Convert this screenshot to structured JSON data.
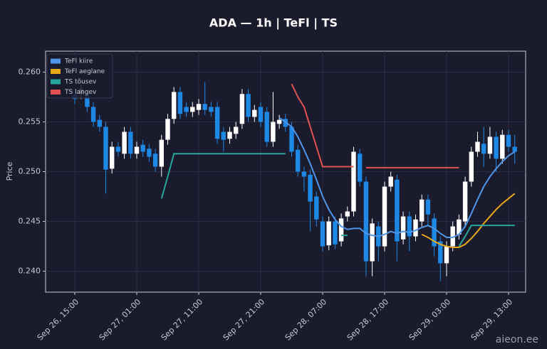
{
  "chart_data": {
    "type": "candlestick",
    "title": "ADA — 1h  |  TeFl  |  TS",
    "y_label": "Price",
    "watermark": "aieon.ee",
    "up_color": "#ffffff",
    "down_color": "#1e88e5",
    "grid": true,
    "legend": "upper left",
    "categories": [
      "Sep 26, 15:00",
      null,
      null,
      null,
      null,
      null,
      null,
      null,
      null,
      null,
      "Sep 27, 01:00",
      null,
      null,
      null,
      null,
      null,
      null,
      null,
      null,
      null,
      "Sep 27, 11:00",
      null,
      null,
      null,
      null,
      null,
      null,
      null,
      null,
      null,
      "Sep 27, 21:00",
      null,
      null,
      null,
      null,
      null,
      null,
      null,
      null,
      null,
      "Sep 28, 07:00",
      null,
      null,
      null,
      null,
      null,
      null,
      null,
      null,
      null,
      "Sep 28, 17:00",
      null,
      null,
      null,
      null,
      null,
      null,
      null,
      null,
      null,
      "Sep 29, 03:00",
      null,
      null,
      null,
      null,
      null,
      null,
      null,
      null,
      null,
      "Sep 29, 13:00",
      null
    ],
    "open": [
      0.2577,
      0.2578,
      0.2578,
      0.2565,
      0.2552,
      0.2545,
      0.2503,
      0.2525,
      0.2518,
      0.254,
      0.2518,
      0.2527,
      0.2523,
      0.2518,
      0.2505,
      0.2532,
      0.2553,
      0.258,
      0.2565,
      0.256,
      0.2562,
      0.2568,
      0.2565,
      0.2565,
      0.254,
      0.2533,
      0.2538,
      0.2548,
      0.2578,
      0.2555,
      0.2565,
      0.256,
      0.253,
      0.2548,
      0.2553,
      0.2545,
      0.2522,
      0.25,
      0.2497,
      0.2475,
      0.245,
      0.2426,
      0.245,
      0.243,
      0.2455,
      0.246,
      0.2518,
      0.249,
      0.241,
      0.2445,
      0.2425,
      0.2485,
      0.2492,
      0.2432,
      0.2455,
      0.2435,
      0.245,
      0.2472,
      0.2453,
      0.243,
      0.2408,
      0.2425,
      0.2437,
      0.245,
      0.249,
      0.252,
      0.2528,
      0.2518,
      0.2535,
      0.2513,
      0.2537,
      0.2525
    ],
    "high": [
      0.2582,
      0.2588,
      0.2583,
      0.257,
      0.2557,
      0.255,
      0.253,
      0.253,
      0.2545,
      0.2545,
      0.253,
      0.2532,
      0.2528,
      0.2523,
      0.2537,
      0.2558,
      0.2585,
      0.2585,
      0.257,
      0.257,
      0.2573,
      0.259,
      0.257,
      0.257,
      0.2545,
      0.2545,
      0.255,
      0.2583,
      0.2583,
      0.2567,
      0.257,
      0.2565,
      0.258,
      0.2557,
      0.2558,
      0.255,
      0.2527,
      0.2505,
      0.2502,
      0.248,
      0.2455,
      0.2455,
      0.2455,
      0.2458,
      0.2465,
      0.2525,
      0.2523,
      0.2495,
      0.2453,
      0.245,
      0.249,
      0.25,
      0.2497,
      0.246,
      0.246,
      0.2457,
      0.2477,
      0.2477,
      0.2458,
      0.2435,
      0.243,
      0.245,
      0.2457,
      0.2495,
      0.2525,
      0.254,
      0.2545,
      0.2545,
      0.254,
      0.2542,
      0.2542,
      0.2537
    ],
    "low": [
      0.2568,
      0.2573,
      0.256,
      0.2545,
      0.254,
      0.2478,
      0.2498,
      0.2515,
      0.2513,
      0.2513,
      0.2513,
      0.2515,
      0.251,
      0.25,
      0.2495,
      0.2527,
      0.2548,
      0.2553,
      0.2555,
      0.2555,
      0.2557,
      0.2557,
      0.2555,
      0.2528,
      0.252,
      0.2528,
      0.2533,
      0.2543,
      0.255,
      0.255,
      0.2545,
      0.2525,
      0.2525,
      0.2543,
      0.254,
      0.2515,
      0.2495,
      0.248,
      0.244,
      0.2445,
      0.242,
      0.2421,
      0.2422,
      0.2425,
      0.245,
      0.2455,
      0.2485,
      0.2395,
      0.2395,
      0.241,
      0.242,
      0.248,
      0.241,
      0.2427,
      0.242,
      0.243,
      0.2445,
      0.2445,
      0.2415,
      0.239,
      0.2395,
      0.242,
      0.2432,
      0.2445,
      0.2485,
      0.2515,
      0.2505,
      0.2513,
      0.25,
      0.2508,
      0.252,
      0.2508
    ],
    "close": [
      0.2573,
      0.2583,
      0.2565,
      0.255,
      0.2545,
      0.2502,
      0.2525,
      0.252,
      0.254,
      0.2518,
      0.2525,
      0.252,
      0.2515,
      0.2505,
      0.2532,
      0.2553,
      0.258,
      0.2558,
      0.256,
      0.2565,
      0.2568,
      0.2562,
      0.256,
      0.2533,
      0.2532,
      0.254,
      0.2545,
      0.2578,
      0.2555,
      0.2562,
      0.255,
      0.253,
      0.255,
      0.2552,
      0.2545,
      0.252,
      0.25,
      0.2495,
      0.247,
      0.2452,
      0.2425,
      0.245,
      0.2427,
      0.2453,
      0.246,
      0.252,
      0.249,
      0.241,
      0.2448,
      0.2425,
      0.2485,
      0.2495,
      0.243,
      0.2455,
      0.2435,
      0.2452,
      0.2472,
      0.2457,
      0.2425,
      0.2408,
      0.2425,
      0.2445,
      0.2452,
      0.249,
      0.252,
      0.253,
      0.2518,
      0.2535,
      0.2513,
      0.2537,
      0.2525,
      0.252
    ],
    "series": [
      {
        "name": "TeFl kiire",
        "color": "#4f95e8",
        "values": [
          null,
          null,
          null,
          null,
          null,
          null,
          null,
          null,
          null,
          null,
          null,
          null,
          null,
          null,
          null,
          null,
          null,
          null,
          null,
          null,
          null,
          null,
          null,
          null,
          null,
          null,
          null,
          null,
          null,
          null,
          null,
          null,
          null,
          0.2554,
          0.255,
          0.2545,
          0.2535,
          0.2522,
          0.2508,
          0.2492,
          0.2475,
          0.2462,
          0.2452,
          0.2445,
          0.2442,
          0.2443,
          0.2443,
          0.2438,
          0.2436,
          0.2435,
          0.2437,
          0.244,
          0.2438,
          0.244,
          0.2439,
          0.2441,
          0.2444,
          0.2446,
          0.2443,
          0.2438,
          0.2434,
          0.2434,
          0.2437,
          0.2445,
          0.2458,
          0.2472,
          0.2485,
          0.2495,
          0.2503,
          0.251,
          0.2516,
          0.252
        ]
      },
      {
        "name": "TeFl aeglane",
        "color": "#e6a817",
        "values": [
          null,
          null,
          null,
          null,
          null,
          null,
          null,
          null,
          null,
          null,
          null,
          null,
          null,
          null,
          null,
          null,
          null,
          null,
          null,
          null,
          null,
          null,
          null,
          null,
          null,
          null,
          null,
          null,
          null,
          null,
          null,
          null,
          null,
          null,
          null,
          null,
          null,
          null,
          null,
          null,
          null,
          null,
          null,
          null,
          null,
          null,
          null,
          null,
          null,
          null,
          null,
          null,
          null,
          null,
          null,
          null,
          0.2437,
          0.2434,
          0.243,
          0.2427,
          0.2425,
          0.2424,
          0.2424,
          0.2427,
          0.2433,
          0.244,
          0.2448,
          0.2455,
          0.2462,
          0.2468,
          0.2473,
          0.2478
        ]
      },
      {
        "name": "TS tõusev",
        "color": "#26a69a",
        "values": [
          null,
          null,
          null,
          null,
          null,
          null,
          null,
          null,
          null,
          null,
          null,
          null,
          null,
          null,
          0.2473,
          0.2495,
          0.2518,
          0.2518,
          0.2518,
          0.2518,
          0.2518,
          0.2518,
          0.2518,
          0.2518,
          0.2518,
          0.2518,
          0.2518,
          0.2518,
          0.2518,
          0.2518,
          0.2518,
          0.2518,
          0.2518,
          0.2518,
          0.2518,
          null,
          null,
          null,
          null,
          null,
          null,
          null,
          null,
          0.2436,
          0.2436,
          null,
          null,
          null,
          null,
          null,
          null,
          null,
          null,
          null,
          null,
          null,
          null,
          null,
          null,
          null,
          null,
          null,
          0.2425,
          0.2435,
          0.2446,
          0.2446,
          0.2446,
          0.2446,
          0.2446,
          0.2446,
          0.2446,
          0.2446
        ]
      },
      {
        "name": "TS langev",
        "color": "#e05252",
        "values": [
          null,
          null,
          null,
          null,
          null,
          null,
          null,
          null,
          null,
          null,
          null,
          null,
          null,
          null,
          null,
          null,
          null,
          null,
          null,
          null,
          null,
          null,
          null,
          null,
          null,
          null,
          null,
          null,
          null,
          null,
          null,
          null,
          null,
          null,
          null,
          0.2588,
          0.2575,
          0.2565,
          0.2545,
          0.2525,
          0.2505,
          0.2505,
          0.2505,
          0.2505,
          0.2505,
          0.2505,
          null,
          0.2504,
          0.2504,
          0.2504,
          0.2504,
          0.2504,
          0.2504,
          0.2504,
          0.2504,
          0.2504,
          0.2504,
          0.2504,
          0.2504,
          0.2504,
          0.2504,
          0.2504,
          0.2504,
          null,
          null,
          null,
          null,
          null,
          null,
          null,
          null,
          null
        ]
      }
    ],
    "ylim": [
      0.2379,
      0.2621
    ],
    "yticks": [
      {
        "value": 0.24,
        "label": "0.240"
      },
      {
        "value": 0.245,
        "label": "0.245"
      },
      {
        "value": 0.25,
        "label": "0.250"
      },
      {
        "value": 0.255,
        "label": "0.255"
      },
      {
        "value": 0.26,
        "label": "0.260"
      }
    ]
  }
}
